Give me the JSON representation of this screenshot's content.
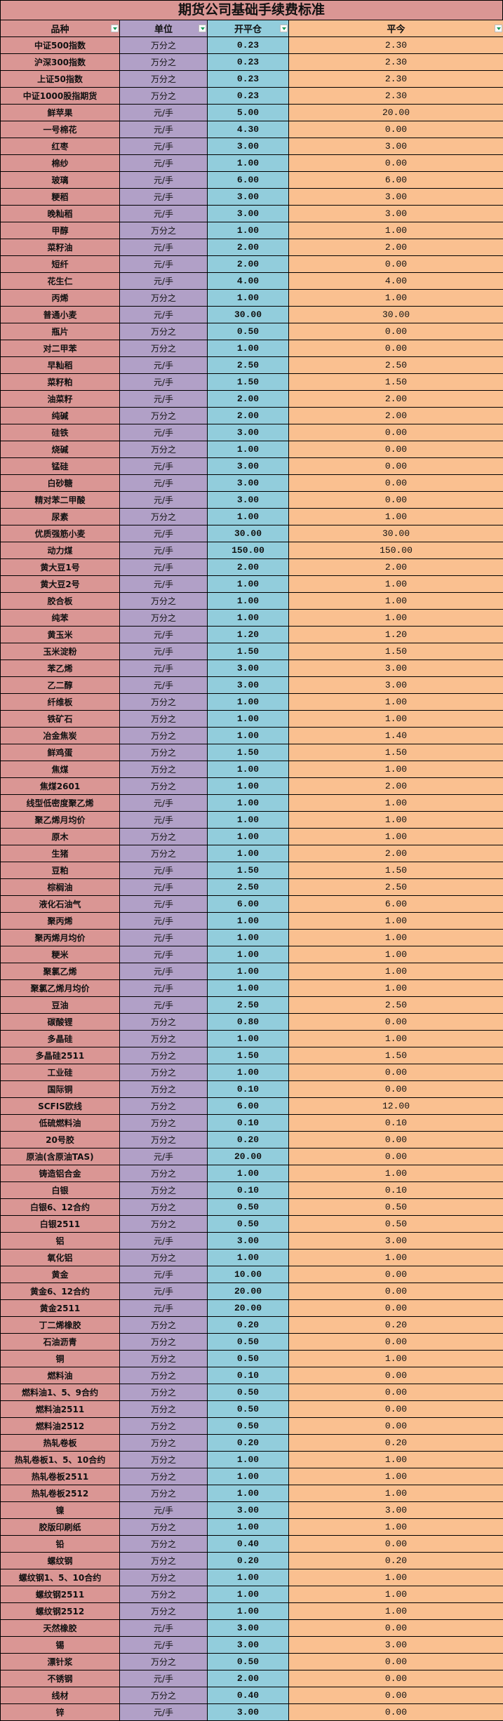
{
  "title": "期货公司基础手续费标准",
  "colors": {
    "variety": "#da9694",
    "unit": "#b1a0c7",
    "open_close": "#92cddc",
    "close_today": "#fac090",
    "filter_arrow": "#1a9a5a"
  },
  "headers": [
    "品种",
    "单位",
    "开平仓",
    "平今"
  ],
  "filter_icon": "dropdown-filter-icon",
  "rows": [
    [
      "中证500指数",
      "万分之",
      "0.23",
      "2.30"
    ],
    [
      "沪深300指数",
      "万分之",
      "0.23",
      "2.30"
    ],
    [
      "上证50指数",
      "万分之",
      "0.23",
      "2.30"
    ],
    [
      "中证1000股指期货",
      "万分之",
      "0.23",
      "2.30"
    ],
    [
      "鲜苹果",
      "元/手",
      "5.00",
      "20.00"
    ],
    [
      "一号棉花",
      "元/手",
      "4.30",
      "0.00"
    ],
    [
      "红枣",
      "元/手",
      "3.00",
      "3.00"
    ],
    [
      "棉纱",
      "元/手",
      "1.00",
      "0.00"
    ],
    [
      "玻璃",
      "元/手",
      "6.00",
      "6.00"
    ],
    [
      "粳稻",
      "元/手",
      "3.00",
      "3.00"
    ],
    [
      "晚籼稻",
      "元/手",
      "3.00",
      "3.00"
    ],
    [
      "甲醇",
      "万分之",
      "1.00",
      "1.00"
    ],
    [
      "菜籽油",
      "元/手",
      "2.00",
      "2.00"
    ],
    [
      "短纤",
      "元/手",
      "2.00",
      "0.00"
    ],
    [
      "花生仁",
      "元/手",
      "4.00",
      "4.00"
    ],
    [
      "丙烯",
      "万分之",
      "1.00",
      "1.00"
    ],
    [
      "普通小麦",
      "元/手",
      "30.00",
      "30.00"
    ],
    [
      "瓶片",
      "万分之",
      "0.50",
      "0.00"
    ],
    [
      "对二甲苯",
      "万分之",
      "1.00",
      "0.00"
    ],
    [
      "早籼稻",
      "元/手",
      "2.50",
      "2.50"
    ],
    [
      "菜籽粕",
      "元/手",
      "1.50",
      "1.50"
    ],
    [
      "油菜籽",
      "元/手",
      "2.00",
      "2.00"
    ],
    [
      "纯碱",
      "万分之",
      "2.00",
      "2.00"
    ],
    [
      "硅铁",
      "元/手",
      "3.00",
      "0.00"
    ],
    [
      "烧碱",
      "万分之",
      "1.00",
      "0.00"
    ],
    [
      "锰硅",
      "元/手",
      "3.00",
      "0.00"
    ],
    [
      "白砂糖",
      "元/手",
      "3.00",
      "0.00"
    ],
    [
      "精对苯二甲酸",
      "元/手",
      "3.00",
      "0.00"
    ],
    [
      "尿素",
      "万分之",
      "1.00",
      "1.00"
    ],
    [
      "优质强筋小麦",
      "元/手",
      "30.00",
      "30.00"
    ],
    [
      "动力煤",
      "元/手",
      "150.00",
      "150.00"
    ],
    [
      "黄大豆1号",
      "元/手",
      "2.00",
      "2.00"
    ],
    [
      "黄大豆2号",
      "元/手",
      "1.00",
      "1.00"
    ],
    [
      "胶合板",
      "万分之",
      "1.00",
      "1.00"
    ],
    [
      "纯苯",
      "万分之",
      "1.00",
      "1.00"
    ],
    [
      "黄玉米",
      "元/手",
      "1.20",
      "1.20"
    ],
    [
      "玉米淀粉",
      "元/手",
      "1.50",
      "1.50"
    ],
    [
      "苯乙烯",
      "元/手",
      "3.00",
      "3.00"
    ],
    [
      "乙二醇",
      "元/手",
      "3.00",
      "3.00"
    ],
    [
      "纤维板",
      "万分之",
      "1.00",
      "1.00"
    ],
    [
      "铁矿石",
      "万分之",
      "1.00",
      "1.00"
    ],
    [
      "冶金焦炭",
      "万分之",
      "1.00",
      "1.40"
    ],
    [
      "鲜鸡蛋",
      "万分之",
      "1.50",
      "1.50"
    ],
    [
      "焦煤",
      "万分之",
      "1.00",
      "1.00"
    ],
    [
      "焦煤2601",
      "万分之",
      "1.00",
      "2.00"
    ],
    [
      "线型低密度聚乙烯",
      "元/手",
      "1.00",
      "1.00"
    ],
    [
      "聚乙烯月均价",
      "元/手",
      "1.00",
      "1.00"
    ],
    [
      "原木",
      "万分之",
      "1.00",
      "1.00"
    ],
    [
      "生猪",
      "万分之",
      "1.00",
      "2.00"
    ],
    [
      "豆粕",
      "元/手",
      "1.50",
      "1.50"
    ],
    [
      "棕榈油",
      "元/手",
      "2.50",
      "2.50"
    ],
    [
      "液化石油气",
      "元/手",
      "6.00",
      "6.00"
    ],
    [
      "聚丙烯",
      "元/手",
      "1.00",
      "1.00"
    ],
    [
      "聚丙烯月均价",
      "元/手",
      "1.00",
      "1.00"
    ],
    [
      "粳米",
      "元/手",
      "1.00",
      "1.00"
    ],
    [
      "聚氯乙烯",
      "元/手",
      "1.00",
      "1.00"
    ],
    [
      "聚氯乙烯月均价",
      "元/手",
      "1.00",
      "1.00"
    ],
    [
      "豆油",
      "元/手",
      "2.50",
      "2.50"
    ],
    [
      "碳酸锂",
      "万分之",
      "0.80",
      "0.00"
    ],
    [
      "多晶硅",
      "万分之",
      "1.00",
      "1.00"
    ],
    [
      "多晶硅2511",
      "万分之",
      "1.50",
      "1.50"
    ],
    [
      "工业硅",
      "万分之",
      "1.00",
      "0.00"
    ],
    [
      "国际铜",
      "万分之",
      "0.10",
      "0.00"
    ],
    [
      "SCFIS欧线",
      "万分之",
      "6.00",
      "12.00"
    ],
    [
      "低硫燃料油",
      "万分之",
      "0.10",
      "0.10"
    ],
    [
      "20号胶",
      "万分之",
      "0.20",
      "0.00"
    ],
    [
      "原油(含原油TAS)",
      "元/手",
      "20.00",
      "0.00"
    ],
    [
      "铸造铝合金",
      "万分之",
      "1.00",
      "1.00"
    ],
    [
      "白银",
      "万分之",
      "0.10",
      "0.10"
    ],
    [
      "白银6、12合约",
      "万分之",
      "0.50",
      "0.50"
    ],
    [
      "白银2511",
      "万分之",
      "0.50",
      "0.50"
    ],
    [
      "铝",
      "元/手",
      "3.00",
      "3.00"
    ],
    [
      "氧化铝",
      "万分之",
      "1.00",
      "1.00"
    ],
    [
      "黄金",
      "元/手",
      "10.00",
      "0.00"
    ],
    [
      "黄金6、12合约",
      "元/手",
      "20.00",
      "0.00"
    ],
    [
      "黄金2511",
      "元/手",
      "20.00",
      "0.00"
    ],
    [
      "丁二烯橡胶",
      "万分之",
      "0.20",
      "0.20"
    ],
    [
      "石油沥青",
      "万分之",
      "0.50",
      "0.00"
    ],
    [
      "铜",
      "万分之",
      "0.50",
      "1.00"
    ],
    [
      "燃料油",
      "万分之",
      "0.10",
      "0.00"
    ],
    [
      "燃料油1、5、9合约",
      "万分之",
      "0.50",
      "0.00"
    ],
    [
      "燃料油2511",
      "万分之",
      "0.50",
      "0.00"
    ],
    [
      "燃料油2512",
      "万分之",
      "0.50",
      "0.00"
    ],
    [
      "热轧卷板",
      "万分之",
      "0.20",
      "0.20"
    ],
    [
      "热轧卷板1、5、10合约",
      "万分之",
      "1.00",
      "1.00"
    ],
    [
      "热轧卷板2511",
      "万分之",
      "1.00",
      "1.00"
    ],
    [
      "热轧卷板2512",
      "万分之",
      "1.00",
      "1.00"
    ],
    [
      "镍",
      "元/手",
      "3.00",
      "3.00"
    ],
    [
      "胶版印刷纸",
      "万分之",
      "1.00",
      "1.00"
    ],
    [
      "铅",
      "万分之",
      "0.40",
      "0.00"
    ],
    [
      "螺纹钢",
      "万分之",
      "0.20",
      "0.20"
    ],
    [
      "螺纹钢1、5、10合约",
      "万分之",
      "1.00",
      "1.00"
    ],
    [
      "螺纹钢2511",
      "万分之",
      "1.00",
      "1.00"
    ],
    [
      "螺纹钢2512",
      "万分之",
      "1.00",
      "1.00"
    ],
    [
      "天然橡胶",
      "元/手",
      "3.00",
      "0.00"
    ],
    [
      "锡",
      "元/手",
      "3.00",
      "3.00"
    ],
    [
      "漂针浆",
      "万分之",
      "0.50",
      "0.00"
    ],
    [
      "不锈钢",
      "元/手",
      "2.00",
      "0.00"
    ],
    [
      "线材",
      "万分之",
      "0.40",
      "0.00"
    ],
    [
      "锌",
      "元/手",
      "3.00",
      "0.00"
    ]
  ]
}
